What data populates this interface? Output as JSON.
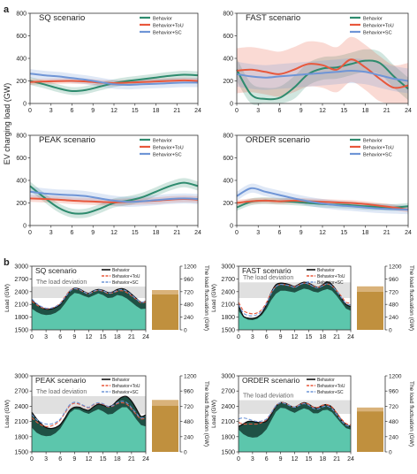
{
  "figure": {
    "panel_a_label": "a",
    "panel_b_label": "b",
    "shared_ylabel_a": "EV charging load (GW)",
    "colors": {
      "behavior": "#2e8b6e",
      "tou": "#e8583c",
      "sc": "#6f95d6",
      "area_dark": "#1f5145",
      "area_light": "#5cc6ac",
      "bar_dark": "#c0903e",
      "bar_light": "#d9b27a",
      "deviation_band": "#e0e0e0"
    }
  },
  "chart_data": [
    {
      "type": "line",
      "title": "SQ scenario",
      "ylabel": "EV charging load (GW)",
      "x": [
        0,
        2,
        4,
        6,
        8,
        10,
        12,
        14,
        16,
        18,
        20,
        22,
        24
      ],
      "xticks": [
        0,
        3,
        6,
        9,
        12,
        15,
        18,
        21,
        24
      ],
      "ylim": [
        0,
        800
      ],
      "yticks": [
        0,
        200,
        400,
        600,
        800
      ],
      "legend": "top-right",
      "series": [
        {
          "name": "Behavior",
          "values": [
            200,
            170,
            135,
            110,
            120,
            150,
            180,
            200,
            215,
            230,
            245,
            255,
            250
          ],
          "band": 35
        },
        {
          "name": "Behavior+ToU",
          "values": [
            190,
            195,
            198,
            200,
            195,
            185,
            180,
            185,
            190,
            195,
            200,
            205,
            200
          ],
          "band": 25
        },
        {
          "name": "Behavior+SC",
          "values": [
            265,
            250,
            240,
            225,
            210,
            190,
            170,
            165,
            170,
            175,
            180,
            185,
            185
          ],
          "band": 40
        }
      ]
    },
    {
      "type": "line",
      "title": "FAST scenario",
      "ylabel": "",
      "x": [
        0,
        2,
        4,
        6,
        8,
        10,
        12,
        14,
        16,
        18,
        20,
        22,
        24
      ],
      "xticks": [
        0,
        3,
        6,
        9,
        12,
        15,
        18,
        21,
        24
      ],
      "ylim": [
        0,
        800
      ],
      "yticks": [
        0,
        200,
        400,
        600,
        800
      ],
      "legend": "top-right",
      "series": [
        {
          "name": "Behavior",
          "values": [
            300,
            80,
            40,
            50,
            140,
            260,
            310,
            320,
            350,
            380,
            360,
            240,
            130
          ],
          "band": 100
        },
        {
          "name": "Behavior+ToU",
          "values": [
            290,
            300,
            280,
            260,
            300,
            350,
            340,
            300,
            390,
            320,
            220,
            140,
            160
          ],
          "band": 200
        },
        {
          "name": "Behavior+SC",
          "values": [
            260,
            240,
            230,
            240,
            250,
            260,
            270,
            280,
            290,
            280,
            250,
            220,
            200
          ],
          "band": 110
        }
      ]
    },
    {
      "type": "line",
      "title": "PEAK scenario",
      "ylabel": "EV charging load (GW)",
      "x": [
        0,
        2,
        4,
        6,
        8,
        10,
        12,
        14,
        16,
        18,
        20,
        22,
        24
      ],
      "xticks": [
        0,
        3,
        6,
        9,
        12,
        15,
        18,
        21,
        24
      ],
      "ylim": [
        0,
        800
      ],
      "yticks": [
        0,
        200,
        400,
        600,
        800
      ],
      "legend": "top-right",
      "series": [
        {
          "name": "Behavior",
          "values": [
            350,
            250,
            160,
            110,
            110,
            150,
            200,
            220,
            250,
            300,
            350,
            380,
            350
          ],
          "band": 40
        },
        {
          "name": "Behavior+ToU",
          "values": [
            240,
            235,
            230,
            220,
            215,
            210,
            205,
            210,
            215,
            220,
            230,
            235,
            230
          ],
          "band": 30
        },
        {
          "name": "Behavior+SC",
          "values": [
            300,
            285,
            275,
            270,
            260,
            240,
            220,
            210,
            215,
            225,
            235,
            240,
            235
          ],
          "band": 45
        }
      ]
    },
    {
      "type": "line",
      "title": "ORDER scenario",
      "ylabel": "",
      "x": [
        0,
        2,
        4,
        6,
        8,
        10,
        12,
        14,
        16,
        18,
        20,
        22,
        24
      ],
      "xticks": [
        0,
        3,
        6,
        9,
        12,
        15,
        18,
        21,
        24
      ],
      "ylim": [
        0,
        800
      ],
      "yticks": [
        0,
        200,
        400,
        600,
        800
      ],
      "legend": "top-right",
      "series": [
        {
          "name": "Behavior",
          "values": [
            160,
            210,
            220,
            215,
            210,
            200,
            190,
            185,
            180,
            170,
            165,
            160,
            170
          ],
          "band": 30
        },
        {
          "name": "Behavior+ToU",
          "values": [
            200,
            215,
            220,
            215,
            220,
            215,
            210,
            205,
            200,
            190,
            175,
            160,
            140
          ],
          "band": 25
        },
        {
          "name": "Behavior+SC",
          "values": [
            260,
            330,
            300,
            270,
            240,
            215,
            195,
            180,
            170,
            160,
            150,
            145,
            140
          ],
          "band": 40
        }
      ]
    },
    {
      "type": "area",
      "title": "SQ scenario",
      "annotation": "The load deviation",
      "ylabel": "Load (GW)",
      "ylabel_right": "The load fluctuation (GW)",
      "x": [
        0,
        1,
        2,
        3,
        4,
        5,
        6,
        7,
        8,
        9,
        10,
        11,
        12,
        13,
        14,
        15,
        16,
        17,
        18,
        19,
        20,
        21,
        22,
        23,
        24
      ],
      "xticks": [
        0,
        3,
        6,
        9,
        12,
        15,
        18,
        21,
        24
      ],
      "ylim": [
        1500,
        3000
      ],
      "yticks": [
        1500,
        1800,
        2100,
        2400,
        2700,
        3000
      ],
      "ylim_right": [
        0,
        1200
      ],
      "yticks_right": [
        0,
        240,
        480,
        720,
        960,
        1200
      ],
      "deviation_band": [
        2250,
        2520
      ],
      "legend": "top-right",
      "base_load": [
        2000,
        1920,
        1870,
        1850,
        1860,
        1900,
        1980,
        2120,
        2280,
        2370,
        2350,
        2300,
        2260,
        2310,
        2360,
        2320,
        2250,
        2260,
        2320,
        2300,
        2240,
        2150,
        2060,
        1990,
        2000
      ],
      "series": [
        {
          "name": "Behavior",
          "values": [
            2200,
            2100,
            2030,
            1990,
            1990,
            2030,
            2100,
            2250,
            2410,
            2480,
            2460,
            2400,
            2360,
            2420,
            2450,
            2430,
            2380,
            2390,
            2450,
            2470,
            2430,
            2340,
            2240,
            2150,
            2170
          ]
        },
        {
          "name": "Behavior+ToU",
          "values": [
            2180,
            2090,
            2030,
            2000,
            2010,
            2050,
            2130,
            2280,
            2420,
            2470,
            2440,
            2390,
            2350,
            2400,
            2430,
            2410,
            2360,
            2370,
            2410,
            2420,
            2380,
            2300,
            2220,
            2140,
            2160
          ]
        },
        {
          "name": "Behavior+SC",
          "values": [
            2230,
            2120,
            2050,
            2010,
            2010,
            2050,
            2120,
            2260,
            2410,
            2470,
            2450,
            2390,
            2350,
            2410,
            2440,
            2420,
            2370,
            2380,
            2430,
            2450,
            2410,
            2320,
            2230,
            2150,
            2180
          ]
        }
      ],
      "fluctuation_bar": [
        670,
        750
      ]
    },
    {
      "type": "area",
      "title": "FAST scenario",
      "annotation": "The load deviation",
      "ylabel": "Load (GW)",
      "ylabel_right": "The load fluctuation (GW)",
      "x": [
        0,
        1,
        2,
        3,
        4,
        5,
        6,
        7,
        8,
        9,
        10,
        11,
        12,
        13,
        14,
        15,
        16,
        17,
        18,
        19,
        20,
        21,
        22,
        23,
        24
      ],
      "xticks": [
        0,
        3,
        6,
        9,
        12,
        15,
        18,
        21,
        24
      ],
      "ylim": [
        1500,
        3000
      ],
      "yticks": [
        1500,
        1800,
        2100,
        2400,
        2700,
        3000
      ],
      "ylim_right": [
        0,
        1200
      ],
      "yticks_right": [
        0,
        240,
        480,
        720,
        960,
        1200
      ],
      "deviation_band": [
        2250,
        2620
      ],
      "legend": "top-right",
      "base_load": [
        1950,
        1800,
        1740,
        1730,
        1760,
        1850,
        2000,
        2200,
        2350,
        2420,
        2420,
        2400,
        2380,
        2430,
        2470,
        2450,
        2400,
        2380,
        2430,
        2460,
        2420,
        2300,
        2150,
        2000,
        1950
      ],
      "series": [
        {
          "name": "Behavior",
          "values": [
            2100,
            1830,
            1780,
            1770,
            1800,
            1900,
            2100,
            2380,
            2560,
            2600,
            2590,
            2560,
            2520,
            2580,
            2620,
            2600,
            2540,
            2500,
            2560,
            2630,
            2560,
            2420,
            2250,
            2100,
            2050
          ]
        },
        {
          "name": "Behavior+ToU",
          "values": [
            2150,
            1960,
            1900,
            1880,
            1900,
            1980,
            2150,
            2380,
            2520,
            2570,
            2560,
            2540,
            2510,
            2560,
            2600,
            2580,
            2530,
            2500,
            2540,
            2580,
            2530,
            2420,
            2290,
            2150,
            2130
          ]
        },
        {
          "name": "Behavior+SC",
          "values": [
            2100,
            1900,
            1840,
            1830,
            1860,
            1950,
            2120,
            2360,
            2520,
            2570,
            2560,
            2540,
            2500,
            2560,
            2600,
            2580,
            2520,
            2490,
            2540,
            2590,
            2530,
            2410,
            2260,
            2120,
            2090
          ]
        }
      ],
      "fluctuation_bar": [
        720,
        820
      ]
    },
    {
      "type": "area",
      "title": "PEAK scenario",
      "annotation": "The load deviation",
      "ylabel": "Load (GW)",
      "ylabel_right": "The load fluctuation (GW)",
      "x": [
        0,
        1,
        2,
        3,
        4,
        5,
        6,
        7,
        8,
        9,
        10,
        11,
        12,
        13,
        14,
        15,
        16,
        17,
        18,
        19,
        20,
        21,
        22,
        23,
        24
      ],
      "xticks": [
        0,
        3,
        6,
        9,
        12,
        15,
        18,
        21,
        24
      ],
      "ylim": [
        1500,
        3000
      ],
      "yticks": [
        1500,
        1800,
        2100,
        2400,
        2700,
        3000
      ],
      "ylim_right": [
        0,
        1200
      ],
      "yticks_right": [
        0,
        240,
        480,
        720,
        960,
        1200
      ],
      "deviation_band": [
        2250,
        2600
      ],
      "legend": "top-right",
      "base_load": [
        1980,
        1880,
        1830,
        1810,
        1820,
        1870,
        1960,
        2110,
        2270,
        2340,
        2330,
        2280,
        2250,
        2300,
        2340,
        2300,
        2240,
        2250,
        2320,
        2380,
        2380,
        2280,
        2140,
        2030,
        2000
      ],
      "series": [
        {
          "name": "Behavior",
          "values": [
            2280,
            2150,
            2050,
            1980,
            1960,
            1980,
            2040,
            2170,
            2320,
            2380,
            2380,
            2340,
            2320,
            2390,
            2440,
            2420,
            2390,
            2420,
            2510,
            2580,
            2590,
            2500,
            2350,
            2200,
            2230
          ]
        },
        {
          "name": "Behavior+ToU",
          "values": [
            2180,
            2090,
            2030,
            2000,
            2010,
            2050,
            2130,
            2270,
            2410,
            2460,
            2440,
            2400,
            2370,
            2430,
            2460,
            2440,
            2390,
            2400,
            2450,
            2470,
            2440,
            2350,
            2240,
            2150,
            2170
          ]
        },
        {
          "name": "Behavior+SC",
          "values": [
            2240,
            2140,
            2080,
            2050,
            2050,
            2080,
            2150,
            2290,
            2430,
            2480,
            2460,
            2410,
            2380,
            2440,
            2470,
            2450,
            2400,
            2410,
            2470,
            2500,
            2470,
            2370,
            2260,
            2170,
            2200
          ]
        }
      ],
      "fluctuation_bar": [
        730,
        820
      ]
    },
    {
      "type": "area",
      "title": "ORDER scenario",
      "annotation": "The load deviation",
      "ylabel": "Load (GW)",
      "ylabel_right": "The load fluctuation (GW)",
      "x": [
        0,
        1,
        2,
        3,
        4,
        5,
        6,
        7,
        8,
        9,
        10,
        11,
        12,
        13,
        14,
        15,
        16,
        17,
        18,
        19,
        20,
        21,
        22,
        23,
        24
      ],
      "xticks": [
        0,
        3,
        6,
        9,
        12,
        15,
        18,
        21,
        24
      ],
      "ylim": [
        1500,
        3000
      ],
      "yticks": [
        1500,
        1800,
        2100,
        2400,
        2700,
        3000
      ],
      "ylim_right": [
        0,
        1200
      ],
      "yticks_right": [
        0,
        240,
        480,
        720,
        960,
        1200
      ],
      "deviation_band": [
        2250,
        2520
      ],
      "legend": "top-right",
      "base_load": [
        1940,
        1850,
        1800,
        1780,
        1790,
        1850,
        1950,
        2120,
        2290,
        2370,
        2360,
        2310,
        2270,
        2320,
        2360,
        2330,
        2260,
        2260,
        2320,
        2330,
        2280,
        2170,
        2060,
        1970,
        1940
      ],
      "series": [
        {
          "name": "Behavior",
          "values": [
            2000,
            2050,
            2100,
            2100,
            2080,
            2080,
            2110,
            2240,
            2400,
            2470,
            2460,
            2410,
            2380,
            2430,
            2470,
            2440,
            2380,
            2370,
            2420,
            2430,
            2380,
            2260,
            2130,
            2040,
            2000
          ]
        },
        {
          "name": "Behavior+ToU",
          "values": [
            2080,
            2050,
            2050,
            2050,
            2050,
            2080,
            2140,
            2270,
            2410,
            2470,
            2460,
            2410,
            2380,
            2430,
            2460,
            2440,
            2380,
            2380,
            2420,
            2430,
            2380,
            2270,
            2150,
            2060,
            2030
          ]
        },
        {
          "name": "Behavior+SC",
          "values": [
            2150,
            2170,
            2150,
            2120,
            2100,
            2110,
            2150,
            2270,
            2410,
            2470,
            2450,
            2410,
            2380,
            2420,
            2450,
            2420,
            2360,
            2350,
            2390,
            2400,
            2350,
            2240,
            2120,
            2030,
            2000
          ]
        }
      ],
      "fluctuation_bar": [
        640,
        700
      ]
    }
  ]
}
